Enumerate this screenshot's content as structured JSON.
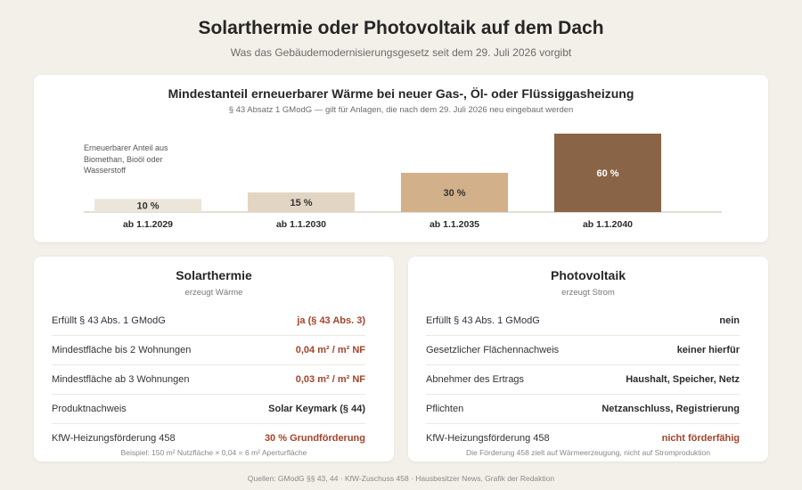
{
  "header": {
    "title": "Solarthermie oder Photovoltaik auf dem Dach",
    "subtitle": "Was das Gebäudemodernisierungsgesetz seit dem 29. Juli 2026 vorgibt"
  },
  "chart_section": {
    "title": "Mindestanteil erneuerbarer Wärme bei neuer Gas-, Öl- oder Flüssiggasheizung",
    "subtitle": "§ 43 Absatz 1 GModG — gilt für Anlagen, die nach dem 29. Juli 2026 neu eingebaut werden",
    "note": "Erneuerbarer Anteil aus Biomethan, Bioöl oder Wasserstoff"
  },
  "chart_data": {
    "type": "bar",
    "categories": [
      "ab 1.1.2029",
      "ab 1.1.2030",
      "ab 1.1.2035",
      "ab 1.1.2040"
    ],
    "values": [
      10,
      15,
      30,
      60
    ],
    "value_labels": [
      "10 %",
      "15 %",
      "30 %",
      "60 %"
    ],
    "unit": "%",
    "ylim": [
      0,
      60
    ],
    "grid": false,
    "colors": [
      "#ece5da",
      "#e3d5c3",
      "#d1b08a",
      "#8a6446"
    ],
    "label_colors": [
      "#333333",
      "#333333",
      "#333333",
      "#ffffff"
    ]
  },
  "panels": [
    {
      "title": "Solarthermie",
      "subtitle": "erzeugt Wärme",
      "rows": [
        {
          "label": "Erfüllt § 43 Abs. 1 GModG",
          "value": "ja (§ 43 Abs. 3)",
          "accent": true
        },
        {
          "label": "Mindestfläche bis 2 Wohnungen",
          "value": "0,04 m² / m² NF",
          "accent": true
        },
        {
          "label": "Mindestfläche ab 3 Wohnungen",
          "value": "0,03 m² / m² NF",
          "accent": true
        },
        {
          "label": "Produktnachweis",
          "value": "Solar Keymark (§ 44)",
          "accent": false
        },
        {
          "label": "KfW-Heizungsförderung 458",
          "value": "30 % Grundförderung",
          "accent": true
        }
      ],
      "note": "Beispiel: 150 m² Nutzfläche × 0,04 = 6 m² Aperturfläche"
    },
    {
      "title": "Photovoltaik",
      "subtitle": "erzeugt Strom",
      "rows": [
        {
          "label": "Erfüllt § 43 Abs. 1 GModG",
          "value": "nein",
          "accent": false
        },
        {
          "label": "Gesetzlicher Flächennachweis",
          "value": "keiner hierfür",
          "accent": false
        },
        {
          "label": "Abnehmer des Ertrags",
          "value": "Haushalt, Speicher, Netz",
          "accent": false
        },
        {
          "label": "Pflichten",
          "value": "Netzanschluss, Registrierung",
          "accent": false
        },
        {
          "label": "KfW-Heizungsförderung 458",
          "value": "nicht förderfähig",
          "accent": true
        }
      ],
      "note": "Die Förderung 458 zielt auf Wärmeerzeugung, nicht auf Stromproduktion"
    }
  ],
  "footer": {
    "sources": "Quellen: GModG §§ 43, 44 · KfW-Zuschuss 458 · Hausbesitzer News, Grafik der Redaktion"
  }
}
